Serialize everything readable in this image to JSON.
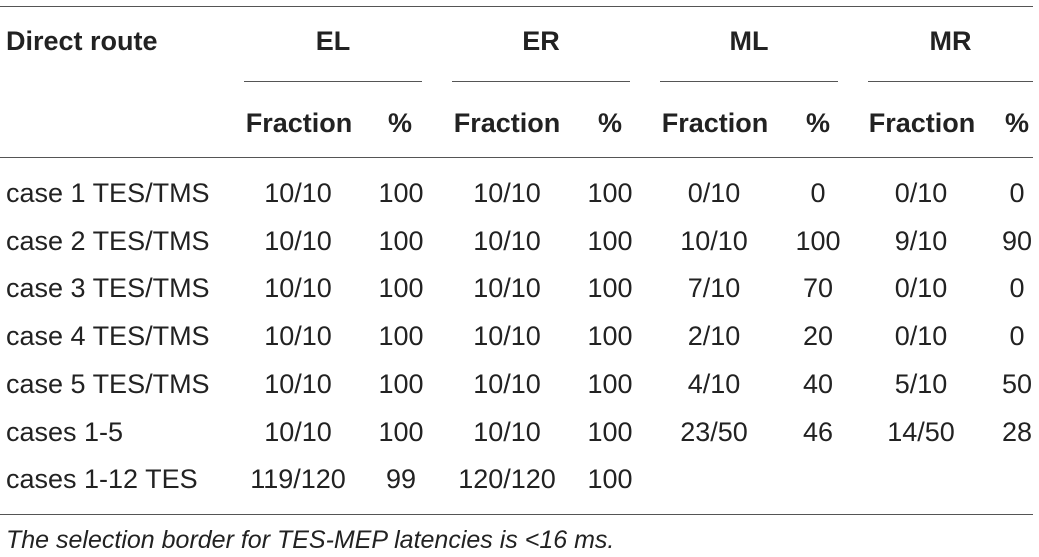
{
  "table": {
    "row_header_label": "Direct route",
    "groups": [
      "EL",
      "ER",
      "ML",
      "MR"
    ],
    "subheaders": [
      "Fraction",
      "%"
    ],
    "rows": [
      {
        "label": "case 1 TES/TMS",
        "cells": [
          "10/10",
          "100",
          "10/10",
          "100",
          "0/10",
          "0",
          "0/10",
          "0"
        ]
      },
      {
        "label": "case 2 TES/TMS",
        "cells": [
          "10/10",
          "100",
          "10/10",
          "100",
          "10/10",
          "100",
          "9/10",
          "90"
        ]
      },
      {
        "label": "case 3 TES/TMS",
        "cells": [
          "10/10",
          "100",
          "10/10",
          "100",
          "7/10",
          "70",
          "0/10",
          "0"
        ]
      },
      {
        "label": "case 4 TES/TMS",
        "cells": [
          "10/10",
          "100",
          "10/10",
          "100",
          "2/10",
          "20",
          "0/10",
          "0"
        ]
      },
      {
        "label": "case 5 TES/TMS",
        "cells": [
          "10/10",
          "100",
          "10/10",
          "100",
          "4/10",
          "40",
          "5/10",
          "50"
        ]
      },
      {
        "label": "cases 1-5",
        "cells": [
          "10/10",
          "100",
          "10/10",
          "100",
          "23/50",
          "46",
          "14/50",
          "28"
        ]
      },
      {
        "label": "cases 1-12 TES",
        "cells": [
          "119/120",
          "99",
          "120/120",
          "100",
          "",
          "",
          "",
          ""
        ]
      }
    ],
    "footnote": "The selection border for TES-MEP latencies is <16 ms."
  }
}
